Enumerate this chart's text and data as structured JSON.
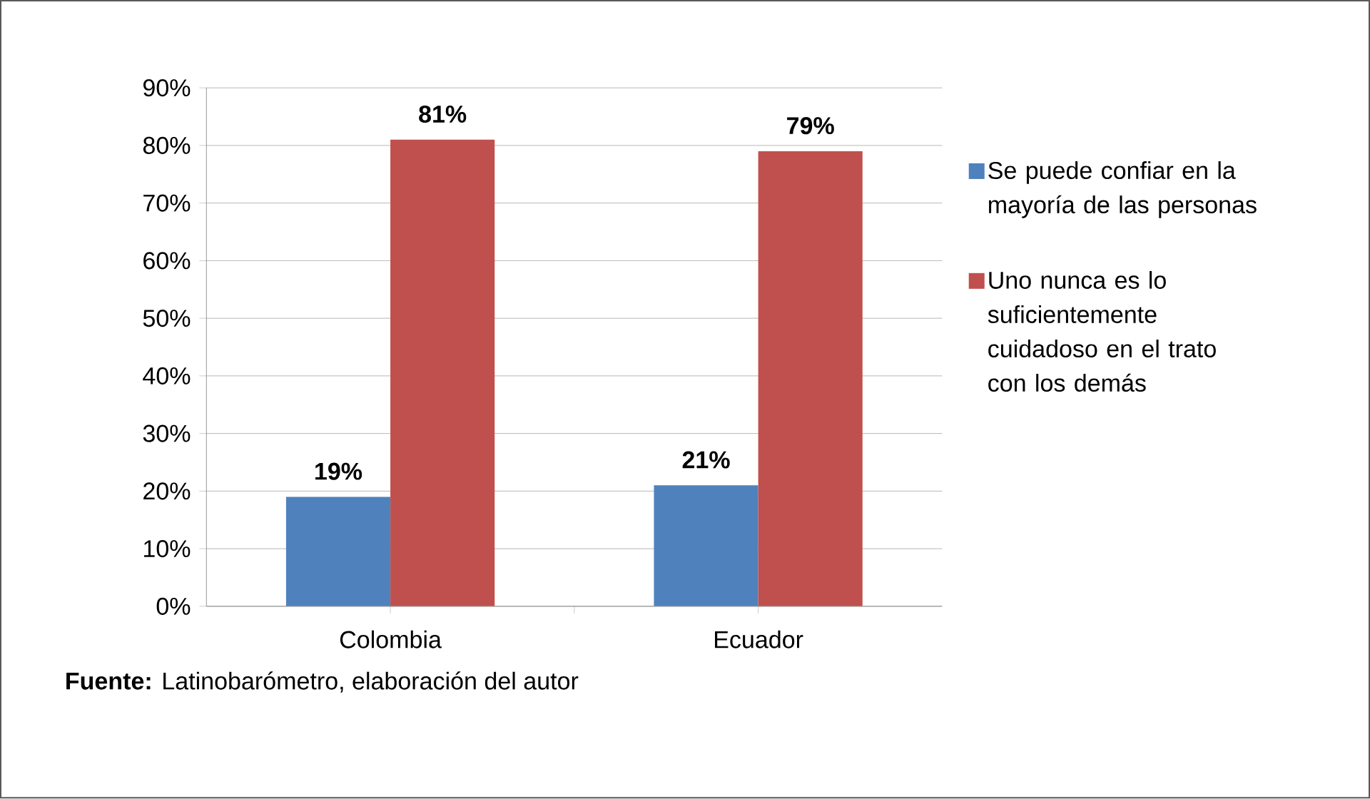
{
  "chart_data": {
    "type": "bar",
    "categories": [
      "Colombia",
      "Ecuador"
    ],
    "series": [
      {
        "name": "Se puede confiar en la mayoría de las personas",
        "color": "#4f81bd",
        "values": [
          19,
          21
        ],
        "value_labels": [
          "19%",
          "21%"
        ]
      },
      {
        "name": "Uno nunca es lo suficientemente cuidadoso en el trato con los demás",
        "color": "#c0504d",
        "values": [
          81,
          79
        ],
        "value_labels": [
          "81%",
          "79%"
        ]
      }
    ],
    "ylim": [
      0,
      90
    ],
    "yticks": [
      {
        "value": 0,
        "label": "0%"
      },
      {
        "value": 10,
        "label": "10%"
      },
      {
        "value": 20,
        "label": "20%"
      },
      {
        "value": 30,
        "label": "30%"
      },
      {
        "value": 40,
        "label": "40%"
      },
      {
        "value": 50,
        "label": "50%"
      },
      {
        "value": 60,
        "label": "60%"
      },
      {
        "value": 70,
        "label": "70%"
      },
      {
        "value": 80,
        "label": "80%"
      },
      {
        "value": 90,
        "label": "90%"
      }
    ],
    "grid": "y",
    "legend": "right",
    "annotations": [
      "**Fuente:** Latinobarómetro, elaboración del autor"
    ]
  }
}
